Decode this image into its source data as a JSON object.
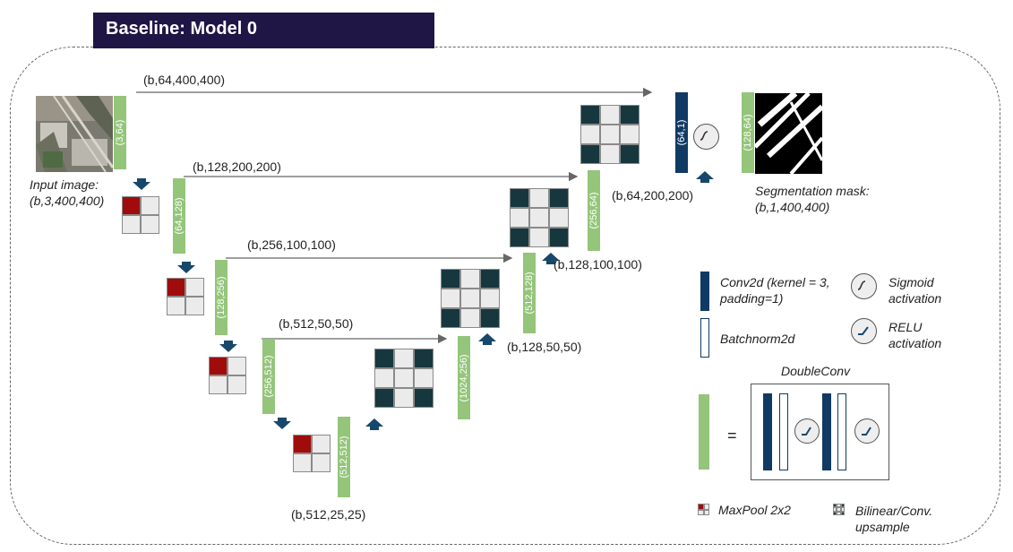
{
  "title": "Baseline: Model 0",
  "input": {
    "caption_1": "Input image:",
    "caption_2": "(b,3,400,400)"
  },
  "output": {
    "caption_1": "Segmentation mask:",
    "caption_2": "(b,1,400,400)"
  },
  "skip_labels": [
    "(b,64,400,400)",
    "(b,128,200,200)",
    "(b,256,100,100)",
    "(b,512,50,50)"
  ],
  "decoder_labels": [
    "(b,64,200,200)",
    "(b,128,100,100)",
    "(b,128,50,50)"
  ],
  "bottom_label": "(b,512,25,25)",
  "encoder_blocks": [
    "(3,64)",
    "(64,128)",
    "(128,256)",
    "(256,512)",
    "(512,512)"
  ],
  "decoder_blocks": [
    "(1024,256)",
    "(512,128)",
    "(256,64)",
    "(128,64)"
  ],
  "final_conv": "(64,1)",
  "legend": {
    "conv": "Conv2d (kernel = 3, padding=1)",
    "bn": "Batchnorm2d",
    "sigmoid": "Sigmoid activation",
    "relu": "RELU activation",
    "doubleconv": "DoubleConv",
    "equals": "=",
    "maxpool": "MaxPool 2x2",
    "upsample": "Bilinear/Conv. upsample"
  },
  "colors": {
    "title_bg": "#1f1646",
    "doubleconv": "#94c57a",
    "conv": "#0f3a63",
    "maxpool": "#a00c0c",
    "upsample": "#17373f"
  }
}
